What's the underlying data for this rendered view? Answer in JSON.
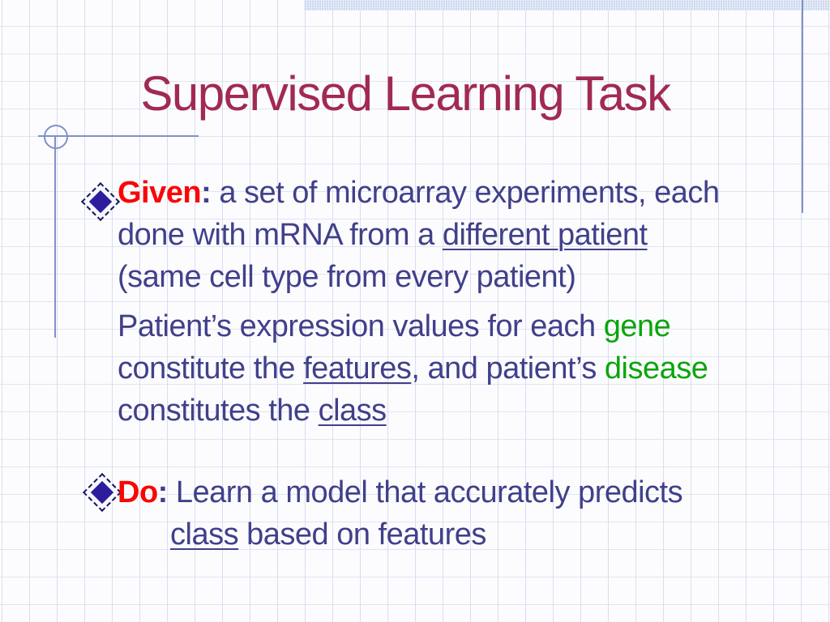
{
  "slide": {
    "title": "Supervised Learning Task",
    "bullet_icon": "diamond-bullet",
    "colors": {
      "title": "#a12a52",
      "body_text": "#40408a",
      "emphasis_red": "#fb0505",
      "emphasis_green": "#0ba50b",
      "accent_line": "#8191c7",
      "grid_line": "#d9ddf1",
      "top_bar": "#ccd7ef",
      "bullet_fill": "#2c1d9c"
    },
    "given": {
      "label": "Given",
      "separator": ": ",
      "line1_rest": "a set of microarray experiments, each",
      "line2_pre": "done with mRNA from a ",
      "line2_underlined": "different patient",
      "line3": "(same cell type from every patient)"
    },
    "patient": {
      "line1_pre": "Patient’s expression values for each ",
      "line1_green": "gene",
      "line2_pre": "constitute the ",
      "line2_underlined": "features",
      "line2_mid": ", and patient’s ",
      "line2_green": "disease",
      "line3_pre": "constitutes the ",
      "line3_underlined": "class"
    },
    "do": {
      "label": "Do",
      "separator": ": ",
      "line1_rest": "Learn a model that accurately predicts",
      "line2_underlined": "class",
      "line2_rest": " based on features"
    }
  }
}
